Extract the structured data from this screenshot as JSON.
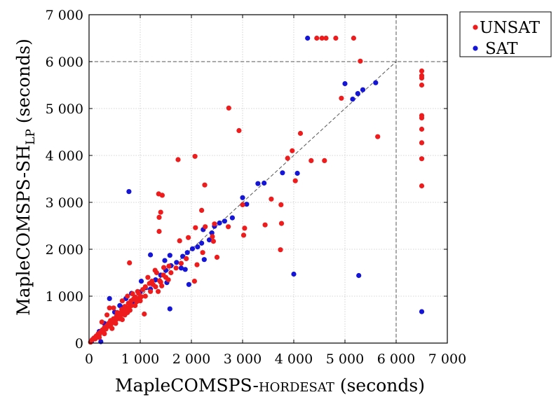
{
  "chart_data": {
    "type": "scatter",
    "title": "",
    "xlabel": {
      "main": "MapleCOMSPS-",
      "smallcaps": "hordesat",
      "unit": " (seconds)"
    },
    "ylabel": {
      "main": "MapleCOMSPS-SH",
      "sub": "LP",
      "unit": " (seconds)"
    },
    "xlim": [
      0,
      7000
    ],
    "ylim": [
      0,
      7000
    ],
    "xticks": [
      0,
      1000,
      2000,
      3000,
      4000,
      5000,
      6000,
      7000
    ],
    "yticks": [
      0,
      1000,
      2000,
      3000,
      4000,
      5000,
      6000,
      7000
    ],
    "xtick_labels": [
      "0",
      "1 000",
      "2 000",
      "3 000",
      "4 000",
      "5 000",
      "6 000",
      "7 000"
    ],
    "ytick_labels": [
      "0",
      "1 000",
      "2 000",
      "3 000",
      "4 000",
      "5 000",
      "6 000",
      "7 000"
    ],
    "grid": true,
    "timeout": 6000,
    "diagonal": [
      [
        0,
        0
      ],
      [
        6000,
        6000
      ]
    ],
    "legend_position": "outside-right-top",
    "colors": {
      "UNSAT": "#ee1c1c",
      "SAT": "#1515d8"
    },
    "series": [
      {
        "name": "SAT",
        "points": [
          [
            4270,
            6500
          ],
          [
            5000,
            5530
          ],
          [
            5600,
            5550
          ],
          [
            5350,
            5400
          ],
          [
            5250,
            5320
          ],
          [
            5150,
            5200
          ],
          [
            3000,
            3100
          ],
          [
            3080,
            2960
          ],
          [
            3300,
            3400
          ],
          [
            3420,
            3410
          ],
          [
            3780,
            3630
          ],
          [
            4070,
            3620
          ],
          [
            2800,
            2670
          ],
          [
            2650,
            2600
          ],
          [
            2550,
            2560
          ],
          [
            2450,
            2490
          ],
          [
            2400,
            2350
          ],
          [
            2230,
            2420
          ],
          [
            2350,
            2200
          ],
          [
            2200,
            2130
          ],
          [
            2120,
            2050
          ],
          [
            2020,
            2010
          ],
          [
            1920,
            1930
          ],
          [
            1830,
            1850
          ],
          [
            1710,
            1720
          ],
          [
            1600,
            1650
          ],
          [
            1500,
            1550
          ],
          [
            1400,
            1450
          ],
          [
            1300,
            1350
          ],
          [
            1200,
            1280
          ],
          [
            1100,
            1180
          ],
          [
            1000,
            1090
          ],
          [
            900,
            980
          ],
          [
            780,
            3230
          ],
          [
            1200,
            1880
          ],
          [
            1580,
            1870
          ],
          [
            1480,
            1760
          ],
          [
            1800,
            1600
          ],
          [
            1880,
            1570
          ],
          [
            2250,
            1780
          ],
          [
            1520,
            1290
          ],
          [
            1580,
            730
          ],
          [
            1020,
            1320
          ],
          [
            830,
            1060
          ],
          [
            720,
            950
          ],
          [
            600,
            800
          ],
          [
            500,
            660
          ],
          [
            400,
            950
          ],
          [
            300,
            420
          ],
          [
            200,
            250
          ],
          [
            150,
            130
          ],
          [
            90,
            100
          ],
          [
            50,
            40
          ],
          [
            230,
            30
          ],
          [
            4000,
            1470
          ],
          [
            5270,
            1440
          ],
          [
            6500,
            670
          ],
          [
            1950,
            1250
          ],
          [
            1200,
            1150
          ],
          [
            850,
            870
          ],
          [
            700,
            620
          ],
          [
            650,
            760
          ]
        ]
      },
      {
        "name": "UNSAT",
        "points": [
          [
            4450,
            6500
          ],
          [
            4550,
            6500
          ],
          [
            4630,
            6500
          ],
          [
            4820,
            6500
          ],
          [
            5170,
            6500
          ],
          [
            5300,
            6010
          ],
          [
            6500,
            5800
          ],
          [
            6500,
            5700
          ],
          [
            6500,
            5650
          ],
          [
            6500,
            5500
          ],
          [
            6500,
            4850
          ],
          [
            6500,
            4800
          ],
          [
            6500,
            4560
          ],
          [
            6500,
            4270
          ],
          [
            6500,
            3930
          ],
          [
            6500,
            3350
          ],
          [
            4930,
            5220
          ],
          [
            2730,
            5010
          ],
          [
            2930,
            4530
          ],
          [
            5640,
            4400
          ],
          [
            4130,
            4470
          ],
          [
            3970,
            4100
          ],
          [
            3880,
            3940
          ],
          [
            4340,
            3890
          ],
          [
            4600,
            3890
          ],
          [
            1740,
            3910
          ],
          [
            2070,
            3980
          ],
          [
            4030,
            3460
          ],
          [
            2260,
            3370
          ],
          [
            1360,
            3180
          ],
          [
            1430,
            3150
          ],
          [
            3560,
            3070
          ],
          [
            3750,
            2950
          ],
          [
            3000,
            2950
          ],
          [
            1400,
            2790
          ],
          [
            1370,
            2680
          ],
          [
            1370,
            2380
          ],
          [
            2200,
            2830
          ],
          [
            2450,
            2540
          ],
          [
            2720,
            2480
          ],
          [
            3040,
            2450
          ],
          [
            3020,
            2300
          ],
          [
            3440,
            2520
          ],
          [
            3760,
            2550
          ],
          [
            3740,
            1990
          ],
          [
            2080,
            2460
          ],
          [
            2270,
            2480
          ],
          [
            2410,
            2270
          ],
          [
            2430,
            2170
          ],
          [
            2500,
            1830
          ],
          [
            2220,
            1930
          ],
          [
            2110,
            1670
          ],
          [
            1770,
            2180
          ],
          [
            1940,
            2250
          ],
          [
            790,
            1710
          ],
          [
            2060,
            1320
          ],
          [
            1560,
            1640
          ],
          [
            1460,
            1610
          ],
          [
            1320,
            1500
          ],
          [
            1290,
            1550
          ],
          [
            1420,
            1220
          ],
          [
            1380,
            1330
          ],
          [
            1230,
            1320
          ],
          [
            1180,
            1270
          ],
          [
            1100,
            1200
          ],
          [
            1050,
            1140
          ],
          [
            970,
            1060
          ],
          [
            1080,
            620
          ],
          [
            900,
            980
          ],
          [
            870,
            940
          ],
          [
            820,
            900
          ],
          [
            770,
            850
          ],
          [
            700,
            780
          ],
          [
            640,
            720
          ],
          [
            600,
            640
          ],
          [
            540,
            580
          ],
          [
            480,
            520
          ],
          [
            420,
            480
          ],
          [
            380,
            420
          ],
          [
            350,
            370
          ],
          [
            300,
            330
          ],
          [
            260,
            280
          ],
          [
            220,
            230
          ],
          [
            180,
            200
          ],
          [
            140,
            150
          ],
          [
            100,
            110
          ],
          [
            60,
            70
          ],
          [
            30,
            20
          ],
          [
            450,
            310
          ],
          [
            520,
            420
          ],
          [
            600,
            520
          ],
          [
            700,
            600
          ],
          [
            800,
            700
          ],
          [
            900,
            800
          ],
          [
            1000,
            900
          ],
          [
            1100,
            1000
          ],
          [
            1200,
            1100
          ],
          [
            1300,
            1200
          ],
          [
            1400,
            1300
          ],
          [
            1500,
            1400
          ],
          [
            1600,
            1500
          ],
          [
            1700,
            1600
          ],
          [
            1800,
            1700
          ],
          [
            1900,
            1800
          ],
          [
            650,
            900
          ],
          [
            750,
            1000
          ],
          [
            850,
            1050
          ],
          [
            950,
            1100
          ],
          [
            400,
            750
          ],
          [
            350,
            600
          ],
          [
            250,
            450
          ],
          [
            550,
            650
          ],
          [
            480,
            750
          ],
          [
            300,
            200
          ],
          [
            200,
            120
          ],
          [
            120,
            90
          ],
          [
            650,
            500
          ],
          [
            750,
            650
          ],
          [
            1150,
            1400
          ],
          [
            1250,
            1250
          ],
          [
            1350,
            1100
          ],
          [
            1450,
            1450
          ],
          [
            1550,
            1350
          ],
          [
            980,
            960
          ],
          [
            1020,
            990
          ],
          [
            930,
            880
          ],
          [
            880,
            930
          ],
          [
            830,
            800
          ],
          [
            780,
            760
          ],
          [
            730,
            700
          ],
          [
            680,
            660
          ],
          [
            630,
            600
          ],
          [
            580,
            560
          ],
          [
            530,
            500
          ],
          [
            480,
            450
          ],
          [
            430,
            400
          ],
          [
            380,
            360
          ],
          [
            330,
            300
          ],
          [
            280,
            250
          ],
          [
            200,
            180
          ],
          [
            160,
            130
          ]
        ]
      }
    ]
  }
}
